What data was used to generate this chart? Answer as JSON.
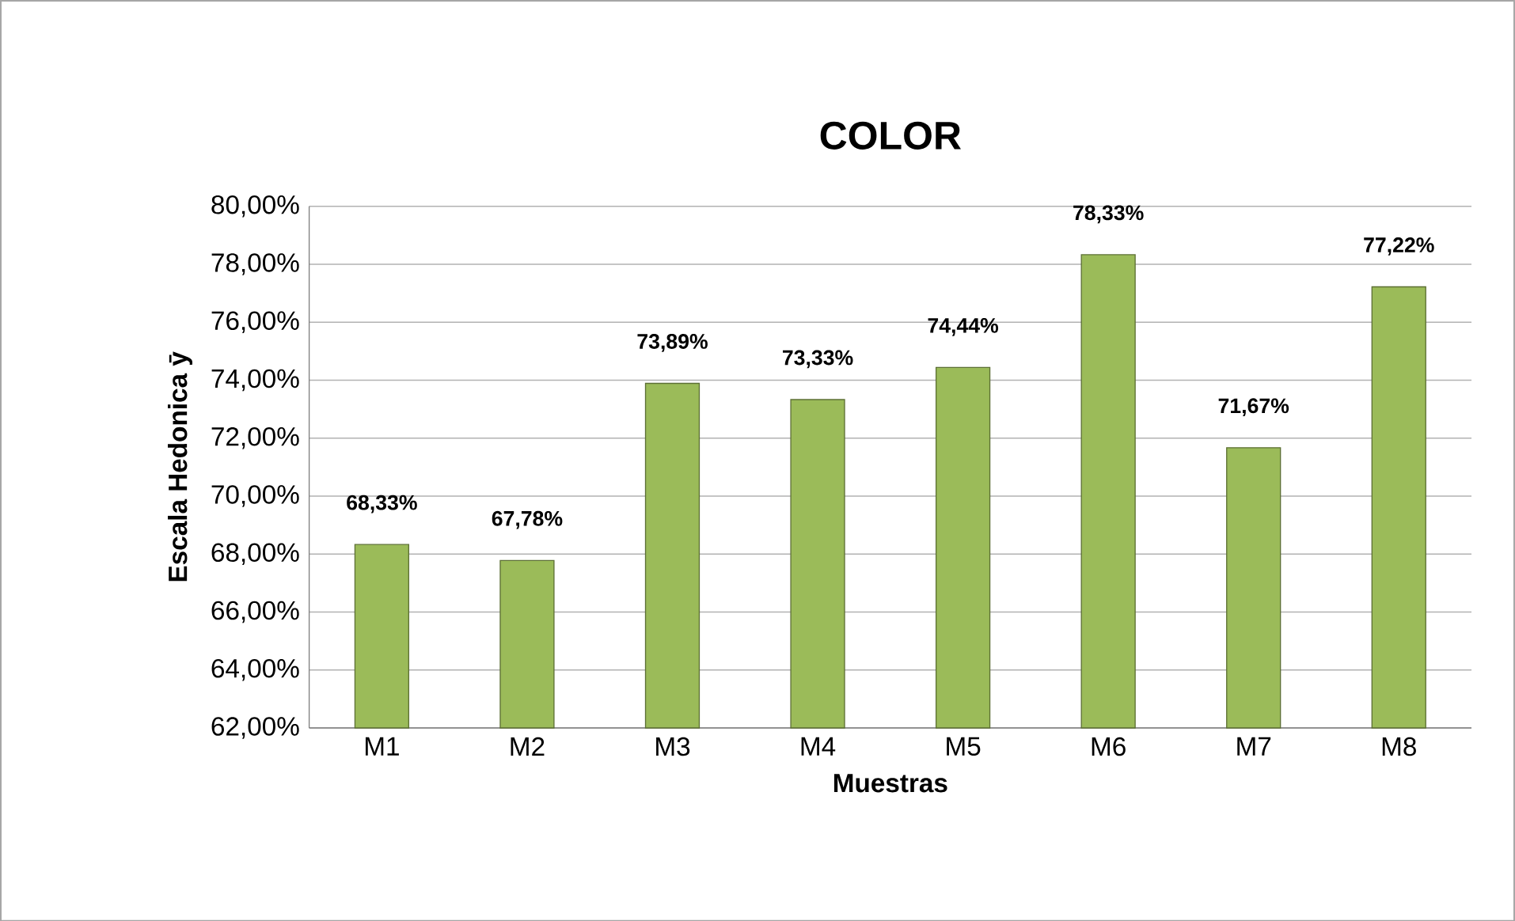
{
  "chart_data": {
    "type": "bar",
    "title": "COLOR",
    "xlabel": "Muestras",
    "ylabel": "Escala Hedonica ȳ",
    "categories": [
      "M1",
      "M2",
      "M3",
      "M4",
      "M5",
      "M6",
      "M7",
      "M8"
    ],
    "values": [
      68.33,
      67.78,
      73.89,
      73.33,
      74.44,
      78.33,
      71.67,
      77.22
    ],
    "value_labels": [
      "68,33%",
      "67,78%",
      "73,89%",
      "73,33%",
      "74,44%",
      "78,33%",
      "71,67%",
      "77,22%"
    ],
    "color": "#9bbb59",
    "ylim": [
      62,
      80
    ],
    "yticks": [
      {
        "value": 62,
        "label": "62,00%"
      },
      {
        "value": 64,
        "label": "64,00%"
      },
      {
        "value": 66,
        "label": "66,00%"
      },
      {
        "value": 68,
        "label": "68,00%"
      },
      {
        "value": 70,
        "label": "70,00%"
      },
      {
        "value": 72,
        "label": "72,00%"
      },
      {
        "value": 74,
        "label": "74,00%"
      },
      {
        "value": 76,
        "label": "76,00%"
      },
      {
        "value": 78,
        "label": "78,00%"
      },
      {
        "value": 80,
        "label": "80,00%"
      }
    ],
    "grid": "y"
  }
}
